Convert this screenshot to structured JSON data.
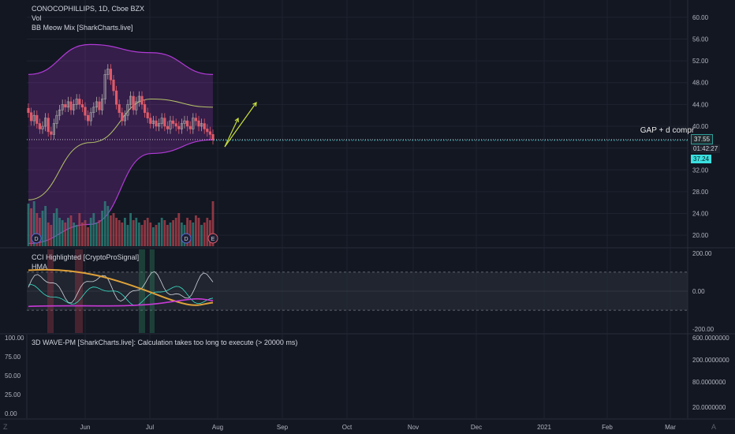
{
  "header": {
    "title": "CONOCOPHILLIPS, 1D, Cboe BZX",
    "vol": "Vol",
    "indicator1": "BB Meow Mix [SharkCharts.live]",
    "cci": "CCI Highlighted [CryptoProSignal]",
    "hma": "HMA",
    "wave": "3D WAVE-PM [SharkCharts.live]: Calculation takes too long to execute (> 20000 ms)"
  },
  "annotation": "GAP + d compr",
  "badges": {
    "last": "37.55",
    "countdown": "01:42:27",
    "low": "37.24"
  },
  "event_markers": [
    "D",
    "D",
    "E"
  ],
  "axis": {
    "corner_left": "Z",
    "corner_right": "A"
  },
  "colors": {
    "bg": "#131722",
    "up": "#a9a9a9",
    "down": "#e05a6a",
    "band": "#b03ad6",
    "basis": "#b5c26a",
    "arrow": "#c9e03a",
    "cci_main": "#e0a23a"
  },
  "chart_data": [
    {
      "type": "candlestick",
      "title": "CONOCOPHILLIPS, 1D, Cboe BZX",
      "y_ticks": [
        "60.00",
        "56.00",
        "52.00",
        "48.00",
        "44.00",
        "40.00",
        "36.00",
        "32.00",
        "28.00",
        "24.00",
        "20.00"
      ],
      "x_ticks": [
        "Jun",
        "Jul",
        "Aug",
        "Sep",
        "Oct",
        "Nov",
        "Dec",
        "2021",
        "Feb",
        "Mar"
      ],
      "ylim": [
        18,
        62
      ],
      "close": [
        42.5,
        41.0,
        42.0,
        40.5,
        39.5,
        40.0,
        41.5,
        39.0,
        38.5,
        40.5,
        42.0,
        43.0,
        44.0,
        43.5,
        44.5,
        43.0,
        44.0,
        45.0,
        44.0,
        43.5,
        42.0,
        41.0,
        42.5,
        43.5,
        44.5,
        43.0,
        45.0,
        49.5,
        50.5,
        48.5,
        46.5,
        44.0,
        42.5,
        41.0,
        42.0,
        44.0,
        45.5,
        43.0,
        44.5,
        45.5,
        44.0,
        42.5,
        41.5,
        40.5,
        41.0,
        40.0,
        40.5,
        41.5,
        40.0,
        39.5,
        41.0,
        40.5,
        40.0,
        39.5,
        40.5,
        41.0,
        40.0,
        39.5,
        41.5,
        41.0,
        40.0,
        40.5,
        39.5,
        39.0,
        38.5,
        37.55
      ],
      "bb_upper": [
        49.5,
        55.0,
        53.5,
        49.5
      ],
      "bb_basis": [
        26.5,
        37.0,
        45.0,
        43.5
      ],
      "bb_lower": [
        18.5,
        22.0,
        35.0,
        37.5
      ]
    },
    {
      "type": "bar",
      "title": "Vol",
      "values": [
        0.9,
        0.8,
        0.95,
        0.7,
        0.6,
        0.75,
        0.85,
        0.5,
        0.45,
        0.7,
        0.8,
        0.6,
        0.55,
        0.5,
        0.6,
        0.65,
        0.5,
        0.45,
        0.7,
        0.5,
        0.55,
        0.4,
        0.6,
        0.7,
        0.5,
        0.55,
        0.75,
        0.95,
        0.85,
        0.65,
        0.7,
        0.6,
        0.55,
        0.5,
        0.6,
        0.45,
        0.7,
        0.55,
        0.6,
        0.5,
        0.45,
        0.55,
        0.6,
        0.5,
        0.4,
        0.45,
        0.5,
        0.6,
        0.55,
        0.45,
        0.5,
        0.55,
        0.6,
        0.7,
        0.5,
        0.45,
        0.6,
        0.55,
        0.5,
        0.65,
        0.6,
        0.45,
        0.5,
        0.6,
        0.55,
        0.95
      ]
    },
    {
      "type": "line",
      "title": "CCI Highlighted [CryptoProSignal]",
      "y_ticks": [
        "200.00",
        "0.00",
        "-200.00"
      ],
      "ylim": [
        -220,
        220
      ],
      "bands": [
        100,
        -100
      ]
    },
    {
      "type": "line",
      "title": "3D WAVE-PM [SharkCharts.live]",
      "y_ticks_left": [
        "100.00",
        "75.00",
        "50.00",
        "25.00",
        "0.00"
      ],
      "y_ticks_right": [
        "600.0000000",
        "200.0000000",
        "80.0000000",
        "20.0000000"
      ]
    }
  ]
}
